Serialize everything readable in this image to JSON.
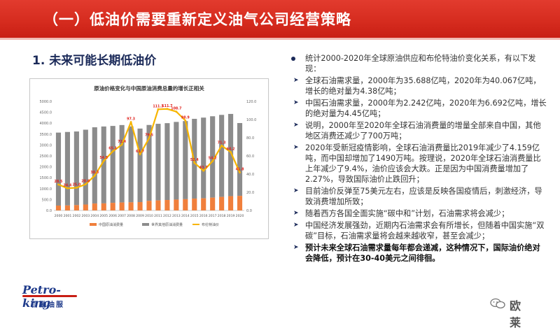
{
  "header": {
    "title": "（一）低油价需要重新定义油气公司经营策略"
  },
  "section": {
    "heading": "1. 未来可能长期低油价"
  },
  "bullets": {
    "main": "统计2000-2020年全球原油供应和布伦特油价变化关系，有以下发现：",
    "items": [
      "全球石油需求量，2000年为35.688亿吨，2020年为40.067亿吨，增长的绝对量为4.38亿吨；",
      "中国石油需求量，2000年为2.242亿吨，2020年为6.692亿吨，增长的绝对量为4.45亿吨；",
      "说明，2000年至2020年全球石油消费量的增量全部来自中国，其他地区消费还减少了700万吨；",
      "2020年受新冠疫情影响，全球石油消费量比2019年减少了4.159亿吨，而中国却增加了1490万吨。按理说，2020年全球石油消费量比上年减少了9.4%，油价应该会大跌。正是因为中国消费量增加了2.27%，导致国际油价止跌回升；",
      "目前油价反弹至75美元左右，应该是反映各国疫情后，刺激经济，导致消费增加所致；",
      "随着西方各国全面实施“碳中和”计划，石油需求将会减少；",
      "中国经济发展强劲，近期内石油需求会有所增长，但随着中国实施“双碳”目标，石油需求量将会越来越收窄，甚至会减少；"
    ],
    "conclusion": "预计未来全球石油需求量每年都会递减，这种情况下，国际油价绝对会降低，预计在30-40美元之间徘徊。"
  },
  "logo": {
    "brand": "Petro-king",
    "brand_cn": "百勤油服"
  },
  "watermark": {
    "text": "欧莱"
  },
  "colors": {
    "accent_red": "#d52b1e",
    "navy": "#1b2a59",
    "bar_gray": "#8c8c8c",
    "bar_orange": "#f07f3c",
    "line_yellow": "#f7b500",
    "label_red": "#e0201b"
  },
  "chart_data": {
    "type": "bar",
    "title": "原油价格变化与中国原油消费总量的增长正相关",
    "categories": [
      "2000",
      "2001",
      "2002",
      "2003",
      "2004",
      "2005",
      "2006",
      "2007",
      "2008",
      "2009",
      "2010",
      "2011",
      "2012",
      "2013",
      "2014",
      "2015",
      "2016",
      "2017",
      "2018",
      "2019",
      "2020"
    ],
    "series": [
      {
        "name": "中国原油消费量",
        "axis": "left",
        "values": [
          224,
          229,
          245,
          272,
          318,
          324,
          349,
          365,
          373,
          384,
          439,
          460,
          480,
          499,
          517,
          543,
          556,
          588,
          621,
          655,
          669
        ]
      },
      {
        "name": "世界其他原油消费量",
        "axis": "left",
        "values": [
          3345,
          3369,
          3375,
          3430,
          3494,
          3525,
          3526,
          3550,
          3480,
          3370,
          3480,
          3512,
          3522,
          3560,
          3580,
          3657,
          3700,
          3730,
          3760,
          3770,
          3338
        ]
      },
      {
        "name": "布伦特油价",
        "axis": "right",
        "type": "line",
        "values": [
          28.5,
          24.4,
          25.0,
          28.8,
          38.3,
          54.5,
          65.1,
          72.4,
          97.3,
          61.7,
          79.5,
          111.3,
          111.7,
          108.7,
          98.9,
          52.4,
          43.7,
          54.2,
          71.3,
          64.2,
          41.8
        ]
      }
    ],
    "y_left": {
      "min": 0,
      "max": 5000,
      "ticks": [
        "0.0",
        "500.0",
        "1000.0",
        "1500.0",
        "2000.0",
        "2500.0",
        "3000.0",
        "3500.0",
        "4000.0",
        "4500.0",
        "5000.0"
      ]
    },
    "y_right": {
      "min": 0,
      "max": 120,
      "ticks": [
        "0.0",
        "20.0",
        "40.0",
        "60.0",
        "80.0",
        "100.0",
        "120.0"
      ]
    },
    "data_labels": [
      "28.5",
      "24.4",
      "25.0",
      "28.8",
      "38.3",
      "54.5",
      "65.1",
      "72.4",
      "97.3",
      "61.7",
      "79.5",
      "111.3",
      "111.7",
      "108.7",
      "98.9",
      "52.4",
      "43.7",
      "54.2",
      "71.3",
      "64.2",
      "41.8"
    ],
    "legend_position": "bottom",
    "grid": false
  }
}
